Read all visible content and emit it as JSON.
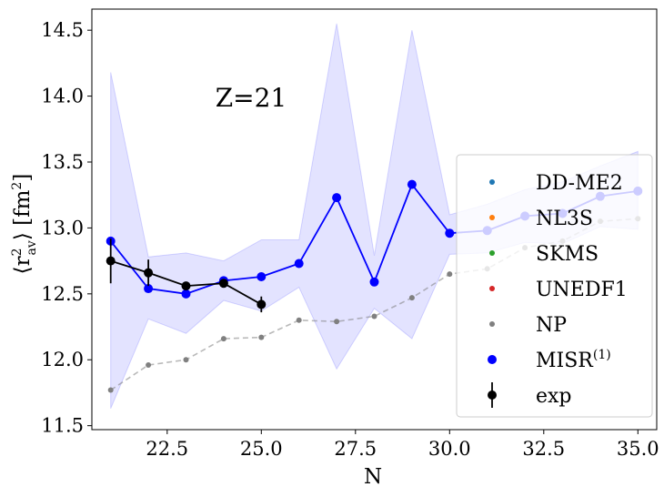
{
  "chart_data": {
    "type": "line",
    "annotation": "Z=21",
    "xlabel": "N",
    "ylabel": "⟨r²av⟩ [fm²]",
    "ylabel_main": "⟨r",
    "ylabel_sup": "2",
    "ylabel_sub": "av",
    "ylabel_tail": "⟩ [fm",
    "ylabel_tail_sup": "2",
    "ylabel_close": "]",
    "xlim": [
      20.5,
      35.5
    ],
    "ylim": [
      11.47,
      14.66
    ],
    "x_ticks": [
      22.5,
      25.0,
      27.5,
      30.0,
      32.5,
      35.0
    ],
    "x_tick_labels": [
      "22.5",
      "25.0",
      "27.5",
      "30.0",
      "32.5",
      "35.0"
    ],
    "y_ticks": [
      11.5,
      12.0,
      12.5,
      13.0,
      13.5,
      14.0,
      14.5
    ],
    "y_tick_labels": [
      "11.5",
      "12.0",
      "12.5",
      "13.0",
      "13.5",
      "14.0",
      "14.5"
    ],
    "grid": false,
    "legend_position": "right",
    "legend": [
      {
        "label": "DD-ME2",
        "color": "#1f77b4",
        "marker": "small-dot"
      },
      {
        "label": "NL3S",
        "color": "#ff7f0e",
        "marker": "small-dot"
      },
      {
        "label": "SKMS",
        "color": "#2ca02c",
        "marker": "small-dot"
      },
      {
        "label": "UNEDF1",
        "color": "#d62728",
        "marker": "small-dot"
      },
      {
        "label": "NP",
        "color": "#808080",
        "marker": "small-dot"
      },
      {
        "label": "MISR",
        "label_sup": "(1)",
        "color": "#0000ff",
        "marker": "dot"
      },
      {
        "label": "exp",
        "color": "#000000",
        "marker": "errorbar"
      }
    ],
    "series": [
      {
        "name": "NP",
        "color": "#808080",
        "style": "dashed",
        "x": [
          21,
          22,
          23,
          24,
          25,
          26,
          27,
          28,
          29,
          30,
          31,
          32,
          33,
          34,
          35
        ],
        "y": [
          11.77,
          11.96,
          12.0,
          12.16,
          12.17,
          12.3,
          12.29,
          12.33,
          12.47,
          12.65,
          12.69,
          12.85,
          12.9,
          13.05,
          13.07
        ]
      },
      {
        "name": "MISR(1)",
        "color": "#0000ff",
        "style": "solid",
        "x": [
          21,
          22,
          23,
          24,
          25,
          26,
          27,
          28,
          29,
          30,
          31,
          32,
          33,
          34,
          35
        ],
        "y": [
          12.9,
          12.54,
          12.5,
          12.6,
          12.63,
          12.73,
          13.23,
          12.59,
          13.33,
          12.96,
          12.98,
          13.09,
          13.11,
          13.24,
          13.28
        ],
        "band_upper": [
          14.18,
          12.78,
          12.81,
          12.75,
          12.91,
          12.91,
          14.55,
          12.79,
          14.5,
          13.1,
          13.18,
          13.29,
          13.35,
          13.47,
          13.58
        ],
        "band_lower": [
          11.63,
          12.31,
          12.2,
          12.45,
          12.37,
          12.55,
          11.93,
          12.39,
          12.16,
          12.8,
          12.81,
          12.89,
          12.88,
          13.01,
          12.99
        ]
      },
      {
        "name": "exp",
        "color": "#000000",
        "style": "solid",
        "x": [
          21,
          22,
          23,
          24,
          25
        ],
        "y": [
          12.75,
          12.66,
          12.56,
          12.58,
          12.42
        ],
        "err": [
          0.17,
          0.1,
          0.02,
          0.03,
          0.06
        ]
      }
    ]
  }
}
